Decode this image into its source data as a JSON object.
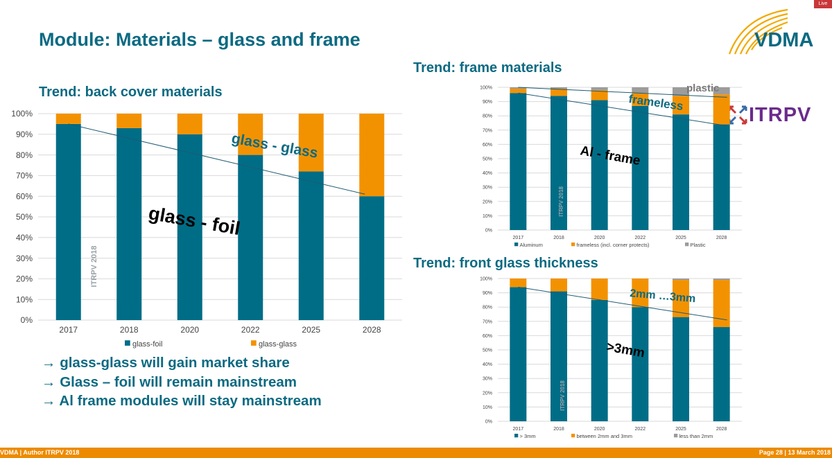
{
  "header": {
    "title": "Module: Materials – glass and frame",
    "logo_text": "VDMA",
    "partner_logo_text": "ITRPV",
    "corner_badge": "Live"
  },
  "sections": {
    "back_cover": "Trend: back cover materials",
    "frame": "Trend: frame materials",
    "front_glass": "Trend: front glass thickness"
  },
  "bullets": [
    "→ glass-glass will gain market share",
    "→ Glass – foil will remain mainstream",
    "→ Al frame modules will stay mainstream"
  ],
  "footer": {
    "left": "VDMA | Author ITRPV 2018",
    "right": "Page 28 | 13 March 2018"
  },
  "colors": {
    "teal": "#006d87",
    "orange": "#f39200",
    "gray": "#9c9c9c",
    "title": "#0c6a82"
  },
  "chart_data": [
    {
      "id": "back_cover",
      "type": "bar",
      "stacked": true,
      "categories": [
        "2017",
        "2018",
        "2020",
        "2022",
        "2025",
        "2028"
      ],
      "series": [
        {
          "name": "glass-foil",
          "values": [
            95,
            93,
            90,
            80,
            72,
            60
          ]
        },
        {
          "name": "glass-glass",
          "values": [
            5,
            7,
            10,
            20,
            28,
            40
          ]
        }
      ],
      "ylim": [
        0,
        100
      ],
      "yticks": [
        "0%",
        "10%",
        "20%",
        "30%",
        "40%",
        "50%",
        "60%",
        "70%",
        "80%",
        "90%",
        "100%"
      ],
      "grid": true,
      "legend": "bottom",
      "watermark": "ITRPV 2018",
      "annotations": [
        "glass - glass",
        "glass - foil"
      ],
      "trend": [
        95,
        61
      ]
    },
    {
      "id": "frame",
      "type": "bar",
      "stacked": true,
      "categories": [
        "2017",
        "2018",
        "2020",
        "2022",
        "2025",
        "2028"
      ],
      "series": [
        {
          "name": "Aluminum",
          "values": [
            96,
            94,
            91,
            87,
            81,
            74
          ]
        },
        {
          "name": "frameless (incl. corner protects)",
          "values": [
            3,
            5,
            7,
            9,
            13,
            21
          ]
        },
        {
          "name": "Plastic",
          "values": [
            1,
            1,
            2,
            4,
            6,
            5
          ]
        }
      ],
      "ylim": [
        0,
        100
      ],
      "yticks": [
        "0%",
        "10%",
        "20%",
        "30%",
        "40%",
        "50%",
        "60%",
        "70%",
        "80%",
        "90%",
        "100%"
      ],
      "grid": true,
      "legend": "bottom",
      "watermark": "ITRPV 2018",
      "annotations": [
        "plastic",
        "frameless",
        "Al - frame"
      ],
      "trend": [
        96,
        73
      ],
      "trend2": [
        100,
        93
      ]
    },
    {
      "id": "front_glass",
      "type": "bar",
      "stacked": true,
      "categories": [
        "2017",
        "2018",
        "2020",
        "2022",
        "2025",
        "2028"
      ],
      "series": [
        {
          "name": "> 3mm",
          "values": [
            94,
            91,
            85,
            80,
            73,
            66
          ]
        },
        {
          "name": "between 2mm and 3mm",
          "values": [
            6,
            9,
            15,
            20,
            26,
            33
          ]
        },
        {
          "name": "less than 2mm",
          "values": [
            0,
            0,
            0,
            0,
            1,
            1
          ]
        }
      ],
      "ylim": [
        0,
        100
      ],
      "yticks": [
        "0%",
        "10%",
        "20%",
        "30%",
        "40%",
        "50%",
        "60%",
        "70%",
        "80%",
        "90%",
        "100%"
      ],
      "grid": true,
      "legend": "bottom",
      "watermark": "ITRPV 2018",
      "annotations": [
        "2mm …3mm",
        ">3mm"
      ],
      "trend": [
        94,
        71
      ]
    }
  ]
}
